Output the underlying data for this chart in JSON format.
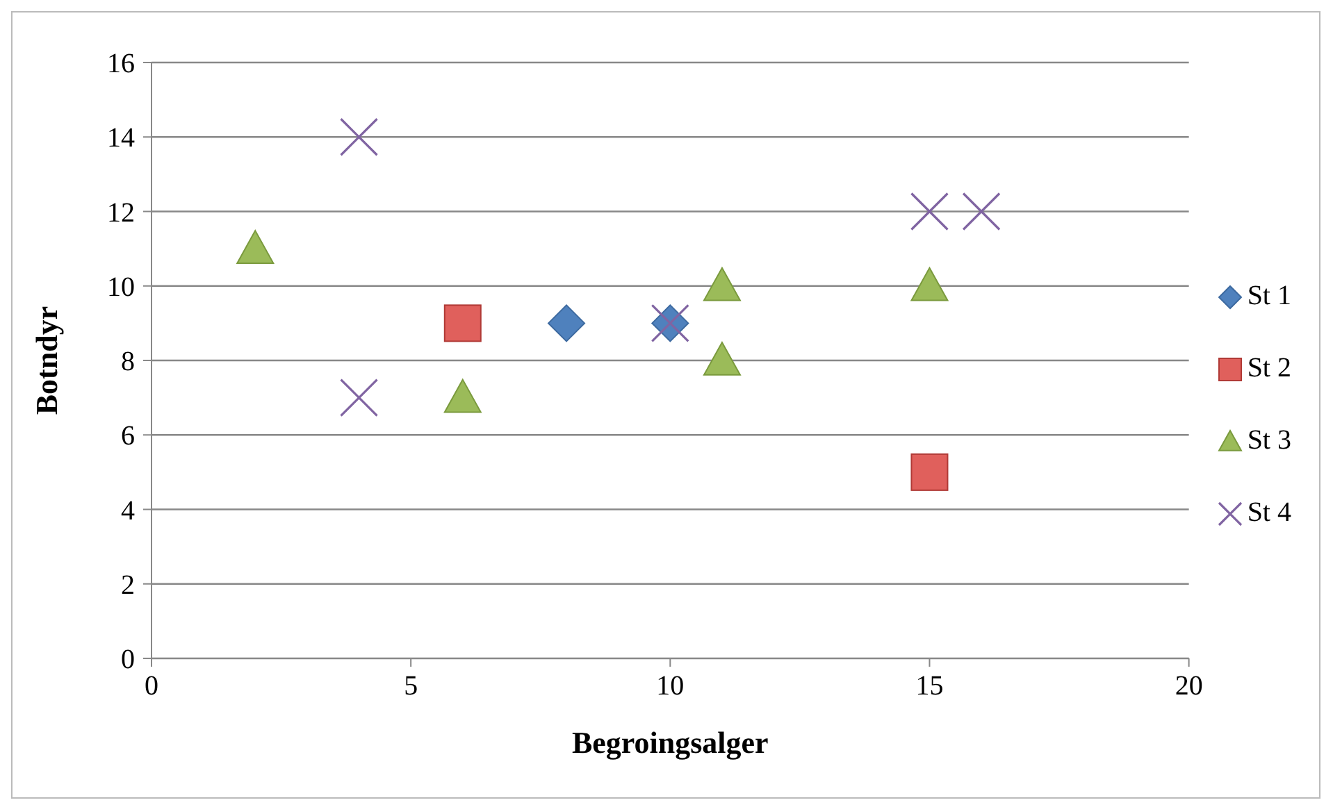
{
  "chart_data": {
    "type": "scatter",
    "xlabel": "Begroingsalger",
    "ylabel": "Botndyr",
    "xlim": [
      0,
      20
    ],
    "xticks": [
      0,
      5,
      10,
      15,
      20
    ],
    "ylim": [
      0,
      16
    ],
    "yticks": [
      0,
      2,
      4,
      6,
      8,
      10,
      12,
      14,
      16
    ],
    "grid": "y",
    "legend": "right",
    "series": [
      {
        "name": "St 1",
        "color": "#4f81bd",
        "marker": "diamond",
        "x": [
          8,
          10
        ],
        "values": [
          9,
          9
        ]
      },
      {
        "name": "St 2",
        "color": "#e0605c",
        "marker": "square",
        "x": [
          6,
          15
        ],
        "values": [
          9,
          5
        ]
      },
      {
        "name": "St 3",
        "color": "#9bbb59",
        "marker": "triangle",
        "x": [
          2,
          6,
          11,
          11,
          15
        ],
        "values": [
          11,
          7,
          10,
          8,
          10
        ]
      },
      {
        "name": "St 4",
        "color": "#8064a2",
        "marker": "cross",
        "x": [
          4,
          4,
          10,
          15,
          16
        ],
        "values": [
          14,
          7,
          9,
          12,
          12
        ]
      }
    ]
  }
}
